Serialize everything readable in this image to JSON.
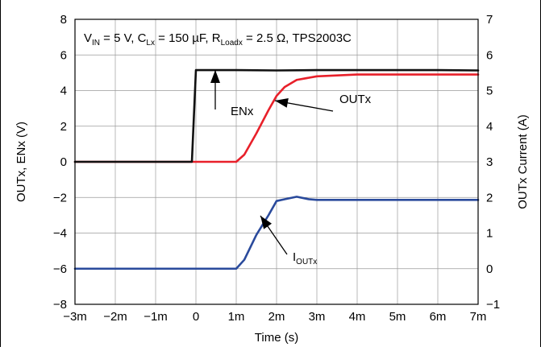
{
  "chart_data": {
    "type": "line",
    "annotation_text": {
      "vin_label": "V",
      "vin_sub": "IN",
      "vin_value": " = 5 V, C",
      "clx_sub": "Lx",
      "clx_value": " = 150 µF, R",
      "rload_sub": "Loadx",
      "rload_value": " = 2.5 Ω, TPS2003C"
    },
    "xlabel": "Time (s)",
    "ylabel_left": "OUTx, ENx (V)",
    "ylabel_right": "OUTx Current (A)",
    "x_ticks": [
      "−3m",
      "−2m",
      "−1m",
      "0",
      "1m",
      "2m",
      "3m",
      "4m",
      "5m",
      "6m",
      "7m"
    ],
    "y_left_ticks": [
      "8",
      "6",
      "4",
      "2",
      "0",
      "−2",
      "−4",
      "−6",
      "−8"
    ],
    "y_right_ticks": [
      "7",
      "6",
      "5",
      "4",
      "3",
      "2",
      "1",
      "0",
      "−1"
    ],
    "xlim": [
      -0.003,
      0.007
    ],
    "ylim_left": [
      -8,
      8
    ],
    "ylim_right": [
      -1,
      7
    ],
    "series": [
      {
        "name": "ENx",
        "axis": "left",
        "color": "#111111",
        "x": [
          -0.003,
          -0.0001,
          0.0,
          0.0001,
          0.001,
          0.002,
          0.003,
          0.004,
          0.005,
          0.006,
          0.007
        ],
        "y": [
          0.0,
          0.0,
          5.15,
          5.15,
          5.15,
          5.13,
          5.15,
          5.15,
          5.15,
          5.15,
          5.13
        ]
      },
      {
        "name": "OUTx",
        "axis": "left",
        "color": "#e8202a",
        "x": [
          -0.003,
          0.0,
          0.001,
          0.0012,
          0.0015,
          0.0018,
          0.002,
          0.0022,
          0.0025,
          0.003,
          0.004,
          0.005,
          0.006,
          0.007
        ],
        "y": [
          0.0,
          0.0,
          0.0,
          0.4,
          1.6,
          2.9,
          3.7,
          4.2,
          4.6,
          4.8,
          4.9,
          4.9,
          4.9,
          4.9
        ]
      },
      {
        "name": "IOUTx",
        "axis": "right",
        "color": "#2a4a9c",
        "x": [
          -0.003,
          0.0,
          0.001,
          0.0012,
          0.0015,
          0.0018,
          0.002,
          0.0022,
          0.0025,
          0.0028,
          0.003,
          0.004,
          0.005,
          0.006,
          0.007
        ],
        "y": [
          0.0,
          0.0,
          0.0,
          0.25,
          0.95,
          1.5,
          1.9,
          1.95,
          2.02,
          1.95,
          1.93,
          1.93,
          1.93,
          1.93,
          1.93
        ]
      }
    ],
    "labels": {
      "enx": "ENx",
      "outx": "OUTx",
      "ioutx_main": "I",
      "ioutx_sub": "OUTx"
    },
    "grid": true
  }
}
